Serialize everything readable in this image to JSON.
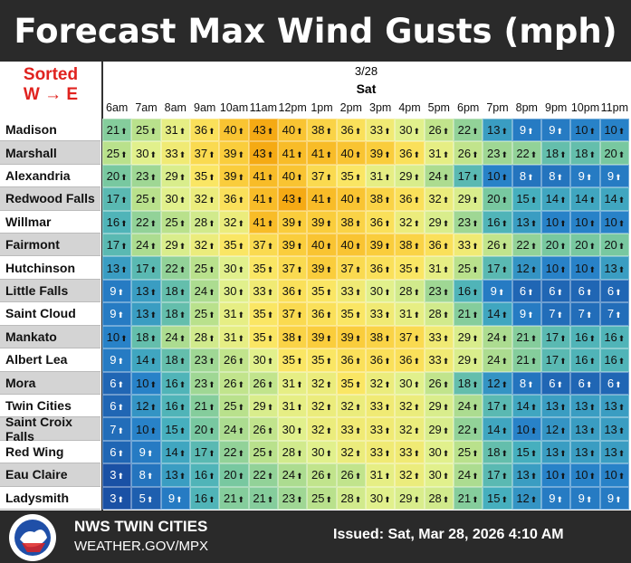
{
  "title": "Forecast Max Wind Gusts (mph)",
  "sort_note": [
    "Sorted",
    "W → E"
  ],
  "date": "3/28",
  "day": "Sat",
  "hours": [
    "6am",
    "7am",
    "8am",
    "9am",
    "10am",
    "11am",
    "12pm",
    "1pm",
    "2pm",
    "3pm",
    "4pm",
    "5pm",
    "6pm",
    "7pm",
    "8pm",
    "9pm",
    "10pm",
    "11pm"
  ],
  "rows": [
    {
      "name": "Madison",
      "values": [
        21,
        25,
        31,
        36,
        40,
        43,
        40,
        38,
        36,
        33,
        30,
        26,
        22,
        13,
        9,
        9,
        10,
        10
      ]
    },
    {
      "name": "Marshall",
      "values": [
        25,
        30,
        33,
        37,
        39,
        43,
        41,
        41,
        40,
        39,
        36,
        31,
        26,
        23,
        22,
        18,
        18,
        20
      ]
    },
    {
      "name": "Alexandria",
      "values": [
        20,
        23,
        29,
        35,
        39,
        41,
        40,
        37,
        35,
        31,
        29,
        24,
        17,
        10,
        8,
        8,
        9,
        9
      ]
    },
    {
      "name": "Redwood Falls",
      "values": [
        17,
        25,
        30,
        32,
        36,
        41,
        43,
        41,
        40,
        38,
        36,
        32,
        29,
        20,
        15,
        14,
        14,
        14
      ]
    },
    {
      "name": "Willmar",
      "values": [
        16,
        22,
        25,
        28,
        32,
        41,
        39,
        39,
        38,
        36,
        32,
        29,
        23,
        16,
        13,
        10,
        10,
        10
      ]
    },
    {
      "name": "Fairmont",
      "values": [
        17,
        24,
        29,
        32,
        35,
        37,
        39,
        40,
        40,
        39,
        38,
        36,
        33,
        26,
        22,
        20,
        20,
        20
      ]
    },
    {
      "name": "Hutchinson",
      "values": [
        13,
        17,
        22,
        25,
        30,
        35,
        37,
        39,
        37,
        36,
        35,
        31,
        25,
        17,
        12,
        10,
        10,
        13
      ]
    },
    {
      "name": "Little Falls",
      "values": [
        9,
        13,
        18,
        24,
        30,
        33,
        36,
        35,
        33,
        30,
        28,
        23,
        16,
        9,
        6,
        6,
        6,
        6
      ]
    },
    {
      "name": "Saint Cloud",
      "values": [
        9,
        13,
        18,
        25,
        31,
        35,
        37,
        36,
        35,
        33,
        31,
        28,
        21,
        14,
        9,
        7,
        7,
        7
      ]
    },
    {
      "name": "Mankato",
      "values": [
        10,
        18,
        24,
        28,
        31,
        35,
        38,
        39,
        39,
        38,
        37,
        33,
        29,
        24,
        21,
        17,
        16,
        16
      ]
    },
    {
      "name": "Albert Lea",
      "values": [
        9,
        14,
        18,
        23,
        26,
        30,
        35,
        35,
        36,
        36,
        36,
        33,
        29,
        24,
        21,
        17,
        16,
        16
      ]
    },
    {
      "name": "Mora",
      "values": [
        6,
        10,
        16,
        23,
        26,
        26,
        31,
        32,
        35,
        32,
        30,
        26,
        18,
        12,
        8,
        6,
        6,
        6
      ]
    },
    {
      "name": "Twin Cities",
      "values": [
        6,
        12,
        16,
        21,
        25,
        29,
        31,
        32,
        32,
        33,
        32,
        29,
        24,
        17,
        14,
        13,
        13,
        13
      ]
    },
    {
      "name": "Saint Croix Falls",
      "values": [
        7,
        10,
        15,
        20,
        24,
        26,
        30,
        32,
        33,
        33,
        32,
        29,
        22,
        14,
        10,
        12,
        13,
        13
      ]
    },
    {
      "name": "Red Wing",
      "values": [
        6,
        9,
        14,
        17,
        22,
        25,
        28,
        30,
        32,
        33,
        33,
        30,
        25,
        18,
        15,
        13,
        13,
        13
      ]
    },
    {
      "name": "Eau Claire",
      "values": [
        3,
        8,
        13,
        16,
        20,
        22,
        24,
        26,
        26,
        31,
        32,
        30,
        24,
        17,
        13,
        10,
        10,
        10
      ]
    },
    {
      "name": "Ladysmith",
      "values": [
        3,
        5,
        9,
        16,
        21,
        21,
        23,
        25,
        28,
        30,
        29,
        28,
        21,
        15,
        12,
        9,
        9,
        9
      ]
    }
  ],
  "footer": {
    "office": "NWS TWIN CITIES",
    "url": "WEATHER.GOV/MPX",
    "issued": "Issued: Sat, Mar 28, 2026 4:10 AM"
  }
}
